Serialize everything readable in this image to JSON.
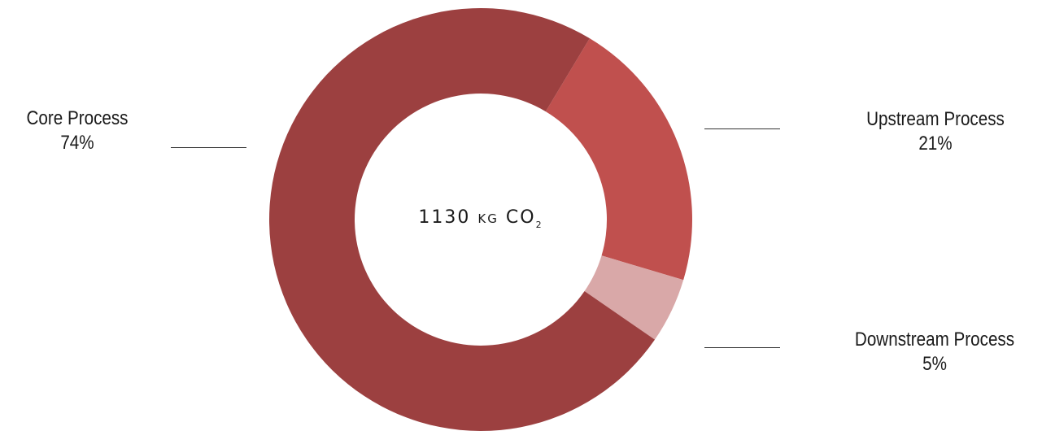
{
  "chart_data": {
    "type": "pie",
    "categories": [
      "Core Process",
      "Upstream Process",
      "Downstream Process"
    ],
    "values": [
      74,
      21,
      5
    ],
    "unit": "%",
    "colors": [
      "#9c4040",
      "#c0504e",
      "#d9a8a8"
    ],
    "center_label": {
      "value": "1130",
      "unit": "kg",
      "gas": "CO",
      "subscript": "2"
    },
    "labels": [
      {
        "name": "Core Process",
        "percent": "74%"
      },
      {
        "name": "Upstream Process",
        "percent": "21%"
      },
      {
        "name": "Downstream Process",
        "percent": "5%"
      }
    ]
  }
}
